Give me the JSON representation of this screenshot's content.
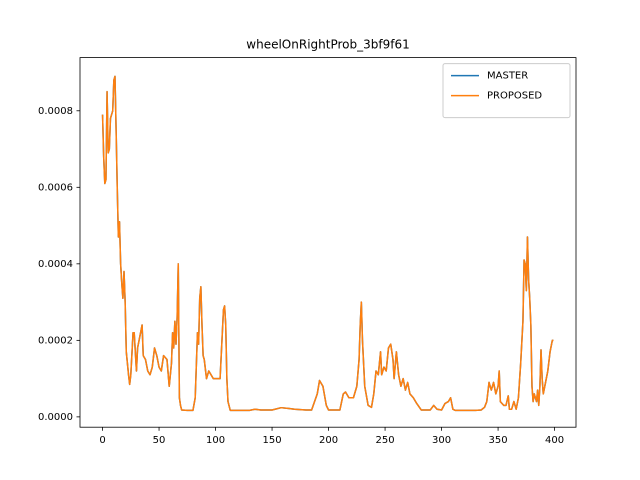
{
  "chart_data": {
    "type": "line",
    "title": "wheelOnRightProb_3bf9f61",
    "x": [
      0,
      1,
      2,
      3,
      4,
      5,
      6,
      7,
      9,
      10,
      11,
      12,
      13,
      14,
      15,
      16,
      17,
      18,
      19,
      20,
      21,
      23,
      24,
      25,
      27,
      28,
      30,
      31,
      33,
      35,
      36,
      38,
      40,
      42,
      44,
      46,
      48,
      50,
      52,
      54,
      57,
      59,
      61,
      62,
      63,
      64,
      65,
      66,
      67,
      68,
      69,
      70,
      75,
      80,
      82,
      84,
      85,
      86,
      87,
      88,
      89,
      90,
      92,
      94,
      96,
      98,
      100,
      104,
      106,
      107,
      108,
      109,
      110,
      111,
      113,
      130,
      135,
      140,
      150,
      158,
      165,
      170,
      180,
      185,
      190,
      192,
      195,
      198,
      200,
      210,
      213,
      215,
      218,
      222,
      225,
      227,
      228,
      229,
      230,
      232,
      235,
      238,
      240,
      242,
      244,
      246,
      247,
      249,
      251,
      253,
      255,
      257,
      258,
      260,
      262,
      264,
      266,
      268,
      270,
      272,
      275,
      278,
      282,
      290,
      293,
      296,
      300,
      303,
      306,
      308,
      310,
      312,
      330,
      335,
      338,
      340,
      342,
      344,
      346,
      348,
      350,
      351,
      352,
      355,
      357,
      359,
      360,
      362,
      364,
      366,
      368,
      370,
      372,
      373,
      374,
      375,
      376,
      377,
      378,
      379,
      380,
      381,
      382,
      384,
      385,
      386,
      387,
      388,
      389,
      390,
      392,
      394,
      396,
      398,
      399
    ],
    "series": [
      {
        "name": "MASTER",
        "color": "#1f77b4",
        "values": [
          0.00079,
          0.00068,
          0.00061,
          0.00062,
          0.00085,
          0.00069,
          0.0007,
          0.00078,
          0.0008,
          0.00088,
          0.00089,
          0.00075,
          0.0006,
          0.00047,
          0.00051,
          0.0004,
          0.00035,
          0.00031,
          0.00038,
          0.0003,
          0.00017,
          0.00011,
          8.5e-05,
          0.00011,
          0.00022,
          0.00022,
          0.00012,
          0.00018,
          0.00021,
          0.00024,
          0.00016,
          0.00015,
          0.00012,
          0.00011,
          0.00013,
          0.00018,
          0.00016,
          0.00013,
          0.00012,
          0.00016,
          0.00015,
          8e-05,
          0.00014,
          0.00022,
          0.00018,
          0.00025,
          0.00019,
          0.00026,
          0.0004,
          5e-05,
          3e-05,
          1.8e-05,
          1.7e-05,
          1.7e-05,
          5e-05,
          0.00022,
          0.00019,
          0.00031,
          0.00034,
          0.00024,
          0.00016,
          0.00015,
          0.0001,
          0.00012,
          0.00011,
          0.0001,
          0.0001,
          0.0001,
          0.00022,
          0.00028,
          0.00029,
          0.00024,
          0.0001,
          4e-05,
          1.7e-05,
          1.7e-05,
          2e-05,
          1.8e-05,
          1.8e-05,
          2.4e-05,
          2.2e-05,
          2e-05,
          1.8e-05,
          1.8e-05,
          6e-05,
          9.5e-05,
          8e-05,
          3e-05,
          1.8e-05,
          1.8e-05,
          6e-05,
          6.5e-05,
          5e-05,
          5e-05,
          8e-05,
          0.00015,
          0.00024,
          0.0003,
          0.0002,
          8e-05,
          3e-05,
          2.5e-05,
          6e-05,
          0.00012,
          0.00011,
          0.00017,
          0.00011,
          0.00013,
          0.00012,
          0.00018,
          0.00019,
          0.00015,
          0.0001,
          0.00017,
          0.00011,
          8e-05,
          0.0001,
          7e-05,
          9e-05,
          6e-05,
          5e-05,
          3.5e-05,
          1.8e-05,
          1.8e-05,
          3e-05,
          2e-05,
          1.8e-05,
          3.5e-05,
          4e-05,
          5e-05,
          2e-05,
          1.7e-05,
          1.7e-05,
          1.8e-05,
          2.5e-05,
          4e-05,
          9e-05,
          7e-05,
          9e-05,
          6e-05,
          8e-05,
          0.00012,
          4e-05,
          3e-05,
          3e-05,
          5.5e-05,
          2e-05,
          2e-05,
          4e-05,
          2e-05,
          5e-05,
          0.00014,
          0.00025,
          0.00041,
          0.0004,
          0.00033,
          0.00047,
          0.00036,
          0.00031,
          0.00024,
          8e-05,
          4e-05,
          6e-05,
          4e-05,
          7e-05,
          3e-05,
          8e-05,
          0.000175,
          0.0001,
          6e-05,
          9e-05,
          0.00012,
          0.00017,
          0.0002,
          0.0002
        ]
      },
      {
        "name": "PROPOSED",
        "color": "#ff7f0e",
        "values": [
          0.00079,
          0.00068,
          0.00061,
          0.00062,
          0.00085,
          0.00069,
          0.0007,
          0.00078,
          0.0008,
          0.00088,
          0.00089,
          0.00075,
          0.0006,
          0.00047,
          0.00051,
          0.0004,
          0.00035,
          0.00031,
          0.00038,
          0.0003,
          0.00017,
          0.00011,
          8.5e-05,
          0.00011,
          0.00022,
          0.00022,
          0.00012,
          0.00018,
          0.00021,
          0.00024,
          0.00016,
          0.00015,
          0.00012,
          0.00011,
          0.00013,
          0.00018,
          0.00016,
          0.00013,
          0.00012,
          0.00016,
          0.00015,
          8e-05,
          0.00014,
          0.00022,
          0.00018,
          0.00025,
          0.00019,
          0.00026,
          0.0004,
          5e-05,
          3e-05,
          1.8e-05,
          1.7e-05,
          1.7e-05,
          5e-05,
          0.00022,
          0.00019,
          0.00031,
          0.00034,
          0.00024,
          0.00016,
          0.00015,
          0.0001,
          0.00012,
          0.00011,
          0.0001,
          0.0001,
          0.0001,
          0.00022,
          0.00028,
          0.00029,
          0.00024,
          0.0001,
          4e-05,
          1.7e-05,
          1.7e-05,
          2e-05,
          1.8e-05,
          1.8e-05,
          2.4e-05,
          2.2e-05,
          2e-05,
          1.8e-05,
          1.8e-05,
          6e-05,
          9.5e-05,
          8e-05,
          3e-05,
          1.8e-05,
          1.8e-05,
          6e-05,
          6.5e-05,
          5e-05,
          5e-05,
          8e-05,
          0.00015,
          0.00024,
          0.0003,
          0.0002,
          8e-05,
          3e-05,
          2.5e-05,
          6e-05,
          0.00012,
          0.00011,
          0.00017,
          0.00011,
          0.00013,
          0.00012,
          0.00018,
          0.00019,
          0.00015,
          0.0001,
          0.00017,
          0.00011,
          8e-05,
          0.0001,
          7e-05,
          9e-05,
          6e-05,
          5e-05,
          3.5e-05,
          1.8e-05,
          1.8e-05,
          3e-05,
          2e-05,
          1.8e-05,
          3.5e-05,
          4e-05,
          5e-05,
          2e-05,
          1.7e-05,
          1.7e-05,
          1.8e-05,
          2.5e-05,
          4e-05,
          9e-05,
          7e-05,
          9e-05,
          6e-05,
          8e-05,
          0.00012,
          4e-05,
          3e-05,
          3e-05,
          5.5e-05,
          2e-05,
          2e-05,
          4e-05,
          2e-05,
          5e-05,
          0.00014,
          0.00025,
          0.00041,
          0.0004,
          0.00033,
          0.00047,
          0.00036,
          0.00031,
          0.00024,
          8e-05,
          4e-05,
          6e-05,
          4e-05,
          7e-05,
          3e-05,
          8e-05,
          0.000175,
          0.0001,
          6e-05,
          9e-05,
          0.00012,
          0.00017,
          0.0002,
          0.0002
        ]
      }
    ],
    "xlim": [
      -19.95,
      418.95
    ],
    "xticks": [
      0,
      50,
      100,
      150,
      200,
      250,
      300,
      350,
      400
    ],
    "ylim": [
      -2.7e-05,
      0.000939
    ],
    "yticks": [
      {
        "value": 0,
        "label": "0.0000"
      },
      {
        "value": 0.0002,
        "label": "0.0002"
      },
      {
        "value": 0.0004,
        "label": "0.0004"
      },
      {
        "value": 0.0006,
        "label": "0.0006"
      },
      {
        "value": 0.0008,
        "label": "0.0008"
      }
    ],
    "legend": "upper right",
    "grid": false
  }
}
